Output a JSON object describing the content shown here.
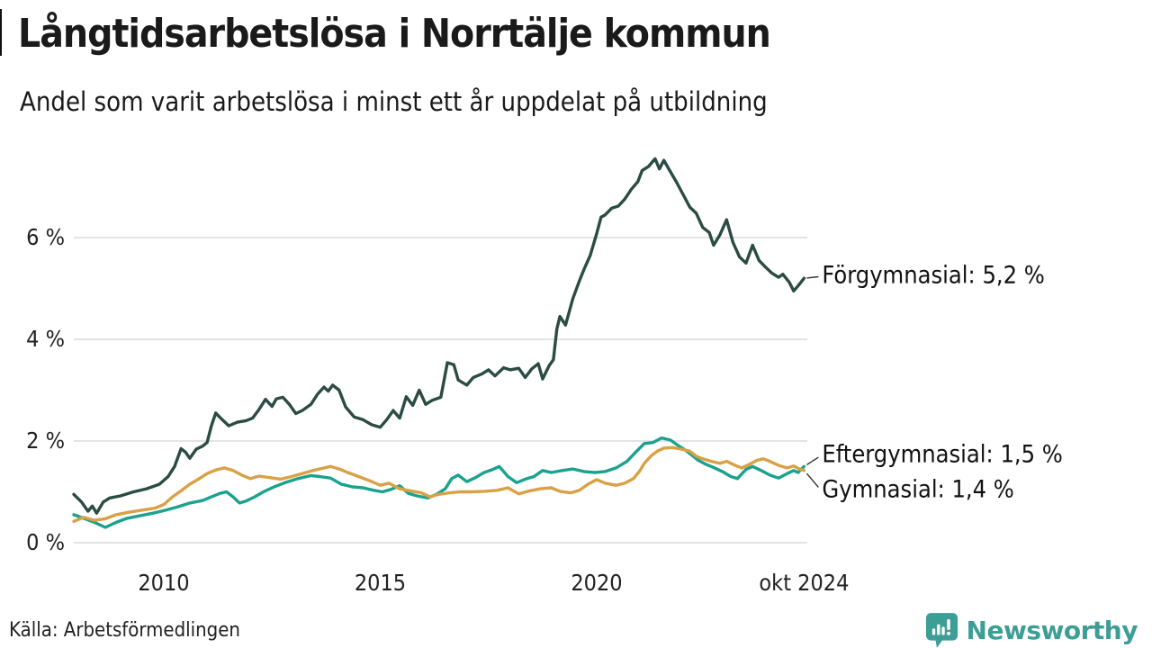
{
  "title": "Långtidsarbetslösa i Norrtälje kommun",
  "subtitle": "Andel som varit arbetslösa i minst ett år uppdelat på utbildning",
  "source": "Källa: Arbetsförmedlingen",
  "branding": {
    "name": "Newsworthy",
    "color": "#3d9e95",
    "icon": "newsworthy-bubble-chart-icon"
  },
  "colors": {
    "grid": "#e3e3e3",
    "text": "#1a1a1a",
    "connector": "#333333"
  },
  "chart_data": {
    "type": "line",
    "title": "Långtidsarbetslösa i Norrtälje kommun",
    "subtitle": "Andel som varit arbetslösa i minst ett år uppdelat på utbildning",
    "grid": "horizontal",
    "legend_position": "end-of-line-labels",
    "x_axis": {
      "range": [
        2007.92,
        2024.79
      ],
      "ticks": [
        {
          "label": "2010",
          "year": 2010
        },
        {
          "label": "2015",
          "year": 2015
        },
        {
          "label": "2020",
          "year": 2020
        },
        {
          "label": "okt 2024",
          "year": 2024.79
        }
      ]
    },
    "y_axis": {
      "unit": "%",
      "range": [
        0,
        7.7
      ],
      "ticks": [
        {
          "label": "0 %",
          "value": 0
        },
        {
          "label": "2 %",
          "value": 2
        },
        {
          "label": "4 %",
          "value": 4
        },
        {
          "label": "6 %",
          "value": 6
        }
      ]
    },
    "series": [
      {
        "name": "Förgymnasial",
        "end_label": "Förgymnasial: 5,2 %",
        "last_value": "5,2 %",
        "color": "#2b4c43",
        "points": [
          [
            2007.92,
            0.95
          ],
          [
            2008.1,
            0.8
          ],
          [
            2008.25,
            0.62
          ],
          [
            2008.35,
            0.72
          ],
          [
            2008.45,
            0.58
          ],
          [
            2008.6,
            0.8
          ],
          [
            2008.75,
            0.88
          ],
          [
            2009.0,
            0.92
          ],
          [
            2009.3,
            1.0
          ],
          [
            2009.6,
            1.06
          ],
          [
            2009.9,
            1.15
          ],
          [
            2010.1,
            1.3
          ],
          [
            2010.25,
            1.5
          ],
          [
            2010.4,
            1.85
          ],
          [
            2010.5,
            1.78
          ],
          [
            2010.6,
            1.66
          ],
          [
            2010.75,
            1.84
          ],
          [
            2010.9,
            1.9
          ],
          [
            2011.0,
            1.97
          ],
          [
            2011.1,
            2.3
          ],
          [
            2011.2,
            2.55
          ],
          [
            2011.35,
            2.42
          ],
          [
            2011.5,
            2.3
          ],
          [
            2011.7,
            2.37
          ],
          [
            2011.9,
            2.4
          ],
          [
            2012.05,
            2.45
          ],
          [
            2012.2,
            2.62
          ],
          [
            2012.35,
            2.82
          ],
          [
            2012.5,
            2.68
          ],
          [
            2012.6,
            2.83
          ],
          [
            2012.75,
            2.86
          ],
          [
            2012.9,
            2.72
          ],
          [
            2013.05,
            2.54
          ],
          [
            2013.2,
            2.6
          ],
          [
            2013.4,
            2.72
          ],
          [
            2013.55,
            2.92
          ],
          [
            2013.7,
            3.06
          ],
          [
            2013.8,
            2.98
          ],
          [
            2013.9,
            3.1
          ],
          [
            2014.05,
            3.0
          ],
          [
            2014.2,
            2.67
          ],
          [
            2014.4,
            2.47
          ],
          [
            2014.6,
            2.42
          ],
          [
            2014.8,
            2.32
          ],
          [
            2015.0,
            2.27
          ],
          [
            2015.15,
            2.42
          ],
          [
            2015.3,
            2.6
          ],
          [
            2015.45,
            2.45
          ],
          [
            2015.6,
            2.87
          ],
          [
            2015.75,
            2.7
          ],
          [
            2015.9,
            3.0
          ],
          [
            2016.05,
            2.72
          ],
          [
            2016.2,
            2.8
          ],
          [
            2016.4,
            2.86
          ],
          [
            2016.55,
            3.54
          ],
          [
            2016.7,
            3.5
          ],
          [
            2016.8,
            3.2
          ],
          [
            2017.0,
            3.1
          ],
          [
            2017.15,
            3.25
          ],
          [
            2017.35,
            3.32
          ],
          [
            2017.5,
            3.4
          ],
          [
            2017.65,
            3.28
          ],
          [
            2017.85,
            3.44
          ],
          [
            2018.0,
            3.4
          ],
          [
            2018.2,
            3.43
          ],
          [
            2018.35,
            3.25
          ],
          [
            2018.5,
            3.42
          ],
          [
            2018.65,
            3.52
          ],
          [
            2018.75,
            3.22
          ],
          [
            2018.9,
            3.48
          ],
          [
            2019.0,
            3.6
          ],
          [
            2019.08,
            4.2
          ],
          [
            2019.15,
            4.45
          ],
          [
            2019.28,
            4.28
          ],
          [
            2019.45,
            4.8
          ],
          [
            2019.6,
            5.15
          ],
          [
            2019.72,
            5.4
          ],
          [
            2019.85,
            5.65
          ],
          [
            2020.0,
            6.08
          ],
          [
            2020.1,
            6.4
          ],
          [
            2020.2,
            6.45
          ],
          [
            2020.35,
            6.58
          ],
          [
            2020.5,
            6.62
          ],
          [
            2020.65,
            6.76
          ],
          [
            2020.8,
            6.95
          ],
          [
            2020.95,
            7.1
          ],
          [
            2021.05,
            7.32
          ],
          [
            2021.2,
            7.4
          ],
          [
            2021.35,
            7.55
          ],
          [
            2021.45,
            7.35
          ],
          [
            2021.55,
            7.52
          ],
          [
            2021.7,
            7.3
          ],
          [
            2021.85,
            7.08
          ],
          [
            2022.0,
            6.84
          ],
          [
            2022.15,
            6.6
          ],
          [
            2022.3,
            6.48
          ],
          [
            2022.45,
            6.2
          ],
          [
            2022.6,
            6.1
          ],
          [
            2022.7,
            5.85
          ],
          [
            2022.85,
            6.06
          ],
          [
            2023.0,
            6.35
          ],
          [
            2023.15,
            5.9
          ],
          [
            2023.3,
            5.62
          ],
          [
            2023.45,
            5.5
          ],
          [
            2023.6,
            5.85
          ],
          [
            2023.75,
            5.55
          ],
          [
            2023.9,
            5.42
          ],
          [
            2024.05,
            5.3
          ],
          [
            2024.2,
            5.22
          ],
          [
            2024.3,
            5.28
          ],
          [
            2024.45,
            5.12
          ],
          [
            2024.55,
            4.95
          ],
          [
            2024.65,
            5.05
          ],
          [
            2024.79,
            5.2
          ]
        ]
      },
      {
        "name": "Eftergymnasial",
        "end_label": "Eftergymnasial: 1,5 %",
        "last_value": "1,5 %",
        "color": "#1ba28e",
        "points": [
          [
            2007.92,
            0.55
          ],
          [
            2008.15,
            0.48
          ],
          [
            2008.4,
            0.4
          ],
          [
            2008.65,
            0.3
          ],
          [
            2008.9,
            0.4
          ],
          [
            2009.15,
            0.48
          ],
          [
            2009.45,
            0.53
          ],
          [
            2009.75,
            0.58
          ],
          [
            2010.0,
            0.63
          ],
          [
            2010.3,
            0.7
          ],
          [
            2010.6,
            0.78
          ],
          [
            2010.9,
            0.83
          ],
          [
            2011.1,
            0.9
          ],
          [
            2011.3,
            0.97
          ],
          [
            2011.45,
            1.0
          ],
          [
            2011.6,
            0.9
          ],
          [
            2011.75,
            0.78
          ],
          [
            2011.9,
            0.82
          ],
          [
            2012.1,
            0.9
          ],
          [
            2012.3,
            1.0
          ],
          [
            2012.55,
            1.1
          ],
          [
            2012.8,
            1.18
          ],
          [
            2013.1,
            1.26
          ],
          [
            2013.4,
            1.32
          ],
          [
            2013.6,
            1.3
          ],
          [
            2013.85,
            1.27
          ],
          [
            2014.1,
            1.15
          ],
          [
            2014.35,
            1.1
          ],
          [
            2014.6,
            1.08
          ],
          [
            2014.85,
            1.03
          ],
          [
            2015.05,
            1.0
          ],
          [
            2015.25,
            1.05
          ],
          [
            2015.45,
            1.12
          ],
          [
            2015.65,
            0.97
          ],
          [
            2015.85,
            0.92
          ],
          [
            2016.1,
            0.88
          ],
          [
            2016.3,
            0.95
          ],
          [
            2016.5,
            1.06
          ],
          [
            2016.65,
            1.26
          ],
          [
            2016.8,
            1.33
          ],
          [
            2017.0,
            1.2
          ],
          [
            2017.2,
            1.28
          ],
          [
            2017.4,
            1.38
          ],
          [
            2017.6,
            1.44
          ],
          [
            2017.75,
            1.5
          ],
          [
            2017.95,
            1.3
          ],
          [
            2018.15,
            1.18
          ],
          [
            2018.35,
            1.25
          ],
          [
            2018.55,
            1.3
          ],
          [
            2018.75,
            1.42
          ],
          [
            2018.95,
            1.38
          ],
          [
            2019.2,
            1.42
          ],
          [
            2019.45,
            1.45
          ],
          [
            2019.7,
            1.4
          ],
          [
            2019.95,
            1.38
          ],
          [
            2020.2,
            1.4
          ],
          [
            2020.45,
            1.47
          ],
          [
            2020.7,
            1.6
          ],
          [
            2020.9,
            1.78
          ],
          [
            2021.1,
            1.95
          ],
          [
            2021.3,
            1.97
          ],
          [
            2021.5,
            2.06
          ],
          [
            2021.7,
            2.02
          ],
          [
            2021.9,
            1.9
          ],
          [
            2022.05,
            1.82
          ],
          [
            2022.2,
            1.72
          ],
          [
            2022.35,
            1.62
          ],
          [
            2022.5,
            1.55
          ],
          [
            2022.7,
            1.48
          ],
          [
            2022.9,
            1.4
          ],
          [
            2023.1,
            1.3
          ],
          [
            2023.25,
            1.26
          ],
          [
            2023.45,
            1.44
          ],
          [
            2023.6,
            1.5
          ],
          [
            2023.8,
            1.42
          ],
          [
            2024.0,
            1.33
          ],
          [
            2024.2,
            1.27
          ],
          [
            2024.4,
            1.36
          ],
          [
            2024.55,
            1.42
          ],
          [
            2024.65,
            1.38
          ],
          [
            2024.79,
            1.5
          ]
        ]
      },
      {
        "name": "Gymnasial",
        "end_label": "Gymnasial: 1,4 %",
        "last_value": "1,4 %",
        "color": "#d9a145",
        "points": [
          [
            2007.92,
            0.42
          ],
          [
            2008.15,
            0.5
          ],
          [
            2008.4,
            0.44
          ],
          [
            2008.65,
            0.47
          ],
          [
            2008.9,
            0.55
          ],
          [
            2009.2,
            0.6
          ],
          [
            2009.5,
            0.64
          ],
          [
            2009.8,
            0.68
          ],
          [
            2010.0,
            0.75
          ],
          [
            2010.2,
            0.9
          ],
          [
            2010.4,
            1.02
          ],
          [
            2010.6,
            1.15
          ],
          [
            2010.8,
            1.25
          ],
          [
            2011.0,
            1.36
          ],
          [
            2011.2,
            1.43
          ],
          [
            2011.4,
            1.47
          ],
          [
            2011.6,
            1.42
          ],
          [
            2011.8,
            1.33
          ],
          [
            2012.0,
            1.26
          ],
          [
            2012.2,
            1.31
          ],
          [
            2012.45,
            1.28
          ],
          [
            2012.7,
            1.25
          ],
          [
            2012.95,
            1.3
          ],
          [
            2013.2,
            1.36
          ],
          [
            2013.45,
            1.42
          ],
          [
            2013.65,
            1.46
          ],
          [
            2013.85,
            1.5
          ],
          [
            2014.05,
            1.45
          ],
          [
            2014.25,
            1.38
          ],
          [
            2014.5,
            1.3
          ],
          [
            2014.75,
            1.22
          ],
          [
            2015.0,
            1.13
          ],
          [
            2015.2,
            1.17
          ],
          [
            2015.45,
            1.06
          ],
          [
            2015.7,
            1.02
          ],
          [
            2015.95,
            0.98
          ],
          [
            2016.15,
            0.9
          ],
          [
            2016.35,
            0.95
          ],
          [
            2016.6,
            0.98
          ],
          [
            2016.85,
            1.0
          ],
          [
            2017.1,
            1.0
          ],
          [
            2017.4,
            1.01
          ],
          [
            2017.7,
            1.03
          ],
          [
            2017.95,
            1.08
          ],
          [
            2018.2,
            0.96
          ],
          [
            2018.45,
            1.02
          ],
          [
            2018.7,
            1.06
          ],
          [
            2018.95,
            1.08
          ],
          [
            2019.15,
            1.01
          ],
          [
            2019.4,
            0.98
          ],
          [
            2019.6,
            1.03
          ],
          [
            2019.8,
            1.15
          ],
          [
            2020.0,
            1.24
          ],
          [
            2020.2,
            1.17
          ],
          [
            2020.45,
            1.13
          ],
          [
            2020.65,
            1.17
          ],
          [
            2020.85,
            1.26
          ],
          [
            2021.0,
            1.42
          ],
          [
            2021.1,
            1.56
          ],
          [
            2021.25,
            1.7
          ],
          [
            2021.4,
            1.8
          ],
          [
            2021.55,
            1.86
          ],
          [
            2021.75,
            1.87
          ],
          [
            2021.95,
            1.84
          ],
          [
            2022.15,
            1.8
          ],
          [
            2022.3,
            1.7
          ],
          [
            2022.45,
            1.65
          ],
          [
            2022.65,
            1.6
          ],
          [
            2022.85,
            1.56
          ],
          [
            2023.0,
            1.6
          ],
          [
            2023.2,
            1.52
          ],
          [
            2023.35,
            1.47
          ],
          [
            2023.5,
            1.53
          ],
          [
            2023.7,
            1.62
          ],
          [
            2023.85,
            1.65
          ],
          [
            2024.0,
            1.6
          ],
          [
            2024.2,
            1.52
          ],
          [
            2024.4,
            1.47
          ],
          [
            2024.55,
            1.51
          ],
          [
            2024.7,
            1.44
          ],
          [
            2024.79,
            1.42
          ]
        ]
      }
    ]
  }
}
